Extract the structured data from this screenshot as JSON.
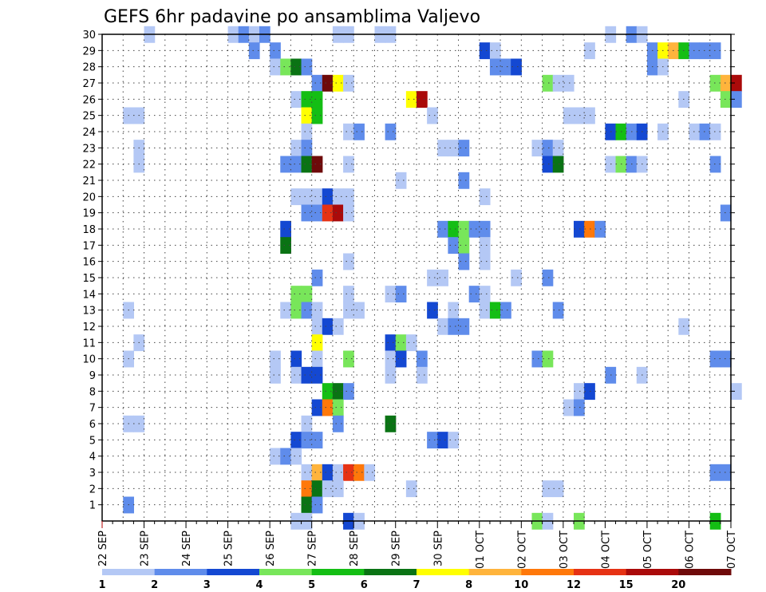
{
  "chart_data": {
    "type": "heatmap",
    "title": "GEFS 6hr padavine po ansamblima Valjevo",
    "xlabel": "",
    "ylabel": "",
    "x_ticks": [
      "22 SEP",
      "23 SEP",
      "24 SEP",
      "25 SEP",
      "26 SEP",
      "27 SEP",
      "28 SEP",
      "29 SEP",
      "30 SEP",
      "01 OCT",
      "02 OCT",
      "03 OCT",
      "04 OCT",
      "05 OCT",
      "06 OCT",
      "07 OCT"
    ],
    "x_range_days": [
      0,
      15
    ],
    "steps_per_day": 4,
    "y_ticks": [
      1,
      2,
      3,
      4,
      5,
      6,
      7,
      8,
      9,
      10,
      11,
      12,
      13,
      14,
      15,
      16,
      17,
      18,
      19,
      20,
      21,
      22,
      23,
      24,
      25,
      26,
      27,
      28,
      29,
      30
    ],
    "y_range": [
      0,
      30
    ],
    "grid": true,
    "colorbar": {
      "labels": [
        "1",
        "2",
        "3",
        "4",
        "5",
        "6",
        "7",
        "8",
        "10",
        "12",
        "15",
        "20"
      ],
      "colors": [
        "#b4c8f5",
        "#5f8ceb",
        "#1448d2",
        "#78e65a",
        "#14be14",
        "#0a7314",
        "#ffff00",
        "#ffb43c",
        "#ff780a",
        "#e63214",
        "#aa0a0a",
        "#6e0a0a"
      ]
    },
    "cells": [
      [
        30,
        4,
        0
      ],
      [
        30,
        12,
        0
      ],
      [
        30,
        13,
        1
      ],
      [
        30,
        14,
        0
      ],
      [
        30,
        15,
        1
      ],
      [
        30,
        22,
        0
      ],
      [
        30,
        23,
        0
      ],
      [
        30,
        26,
        0
      ],
      [
        30,
        27,
        0
      ],
      [
        30,
        48,
        0
      ],
      [
        30,
        50,
        1
      ],
      [
        30,
        51,
        0
      ],
      [
        29,
        14,
        1
      ],
      [
        29,
        16,
        1
      ],
      [
        29,
        36,
        2
      ],
      [
        29,
        37,
        0
      ],
      [
        29,
        46,
        0
      ],
      [
        29,
        52,
        1
      ],
      [
        29,
        53,
        6
      ],
      [
        29,
        54,
        7
      ],
      [
        29,
        55,
        4
      ],
      [
        29,
        56,
        1
      ],
      [
        29,
        57,
        1
      ],
      [
        29,
        58,
        1
      ],
      [
        28,
        16,
        0
      ],
      [
        28,
        17,
        3
      ],
      [
        28,
        18,
        5
      ],
      [
        28,
        19,
        1
      ],
      [
        28,
        37,
        1
      ],
      [
        28,
        38,
        1
      ],
      [
        28,
        39,
        2
      ],
      [
        28,
        52,
        1
      ],
      [
        28,
        53,
        0
      ],
      [
        27,
        20,
        1
      ],
      [
        27,
        21,
        11
      ],
      [
        27,
        22,
        6
      ],
      [
        27,
        23,
        0
      ],
      [
        27,
        42,
        3
      ],
      [
        27,
        43,
        0
      ],
      [
        27,
        44,
        0
      ],
      [
        27,
        58,
        3
      ],
      [
        27,
        59,
        7
      ],
      [
        27,
        60,
        10
      ],
      [
        26,
        18,
        0
      ],
      [
        26,
        19,
        4
      ],
      [
        26,
        20,
        4
      ],
      [
        26,
        29,
        6
      ],
      [
        26,
        30,
        10
      ],
      [
        26,
        55,
        0
      ],
      [
        26,
        59,
        3
      ],
      [
        26,
        60,
        1
      ],
      [
        25,
        2,
        0
      ],
      [
        25,
        3,
        0
      ],
      [
        25,
        19,
        6
      ],
      [
        25,
        20,
        4
      ],
      [
        25,
        31,
        0
      ],
      [
        25,
        44,
        0
      ],
      [
        25,
        45,
        0
      ],
      [
        25,
        46,
        0
      ],
      [
        24,
        19,
        0
      ],
      [
        24,
        23,
        0
      ],
      [
        24,
        24,
        1
      ],
      [
        24,
        27,
        1
      ],
      [
        24,
        48,
        2
      ],
      [
        24,
        49,
        4
      ],
      [
        24,
        50,
        1
      ],
      [
        24,
        51,
        2
      ],
      [
        24,
        53,
        0
      ],
      [
        24,
        56,
        0
      ],
      [
        24,
        57,
        1
      ],
      [
        24,
        58,
        0
      ],
      [
        23,
        3,
        0
      ],
      [
        23,
        18,
        0
      ],
      [
        23,
        19,
        1
      ],
      [
        23,
        32,
        0
      ],
      [
        23,
        33,
        0
      ],
      [
        23,
        34,
        1
      ],
      [
        23,
        41,
        0
      ],
      [
        23,
        42,
        1
      ],
      [
        23,
        43,
        0
      ],
      [
        22,
        3,
        0
      ],
      [
        22,
        17,
        1
      ],
      [
        22,
        18,
        1
      ],
      [
        22,
        19,
        5
      ],
      [
        22,
        20,
        11
      ],
      [
        22,
        23,
        0
      ],
      [
        22,
        42,
        2
      ],
      [
        22,
        43,
        5
      ],
      [
        22,
        48,
        0
      ],
      [
        22,
        49,
        3
      ],
      [
        22,
        50,
        1
      ],
      [
        22,
        51,
        0
      ],
      [
        22,
        58,
        1
      ],
      [
        21,
        28,
        0
      ],
      [
        21,
        34,
        1
      ],
      [
        20,
        18,
        0
      ],
      [
        20,
        19,
        0
      ],
      [
        20,
        20,
        0
      ],
      [
        20,
        21,
        2
      ],
      [
        20,
        22,
        0
      ],
      [
        20,
        23,
        0
      ],
      [
        20,
        36,
        0
      ],
      [
        19,
        19,
        1
      ],
      [
        19,
        20,
        1
      ],
      [
        19,
        21,
        9
      ],
      [
        19,
        22,
        10
      ],
      [
        19,
        23,
        0
      ],
      [
        19,
        59,
        1
      ],
      [
        18,
        17,
        2
      ],
      [
        18,
        32,
        1
      ],
      [
        18,
        33,
        4
      ],
      [
        18,
        34,
        3
      ],
      [
        18,
        35,
        1
      ],
      [
        18,
        36,
        1
      ],
      [
        18,
        45,
        2
      ],
      [
        18,
        46,
        8
      ],
      [
        18,
        47,
        1
      ],
      [
        17,
        17,
        5
      ],
      [
        17,
        33,
        1
      ],
      [
        17,
        34,
        3
      ],
      [
        17,
        36,
        0
      ],
      [
        16,
        23,
        0
      ],
      [
        16,
        34,
        1
      ],
      [
        16,
        36,
        0
      ],
      [
        15,
        20,
        1
      ],
      [
        15,
        31,
        0
      ],
      [
        15,
        32,
        0
      ],
      [
        15,
        39,
        0
      ],
      [
        15,
        42,
        1
      ],
      [
        14,
        18,
        3
      ],
      [
        14,
        19,
        3
      ],
      [
        14,
        23,
        0
      ],
      [
        14,
        27,
        0
      ],
      [
        14,
        28,
        1
      ],
      [
        14,
        35,
        1
      ],
      [
        14,
        36,
        0
      ],
      [
        13,
        2,
        0
      ],
      [
        13,
        17,
        0
      ],
      [
        13,
        18,
        3
      ],
      [
        13,
        19,
        1
      ],
      [
        13,
        20,
        0
      ],
      [
        13,
        23,
        0
      ],
      [
        13,
        24,
        0
      ],
      [
        13,
        31,
        2
      ],
      [
        13,
        33,
        0
      ],
      [
        13,
        36,
        0
      ],
      [
        13,
        37,
        4
      ],
      [
        13,
        38,
        1
      ],
      [
        13,
        43,
        1
      ],
      [
        12,
        20,
        0
      ],
      [
        12,
        21,
        2
      ],
      [
        12,
        22,
        0
      ],
      [
        12,
        32,
        0
      ],
      [
        12,
        33,
        1
      ],
      [
        12,
        34,
        1
      ],
      [
        12,
        55,
        0
      ],
      [
        11,
        3,
        0
      ],
      [
        11,
        20,
        6
      ],
      [
        11,
        27,
        2
      ],
      [
        11,
        28,
        3
      ],
      [
        11,
        29,
        0
      ],
      [
        10,
        2,
        0
      ],
      [
        10,
        16,
        0
      ],
      [
        10,
        18,
        2
      ],
      [
        10,
        20,
        0
      ],
      [
        10,
        23,
        3
      ],
      [
        10,
        27,
        0
      ],
      [
        10,
        28,
        2
      ],
      [
        10,
        30,
        1
      ],
      [
        10,
        41,
        1
      ],
      [
        10,
        42,
        3
      ],
      [
        10,
        58,
        1
      ],
      [
        10,
        59,
        1
      ],
      [
        9,
        16,
        0
      ],
      [
        9,
        18,
        0
      ],
      [
        9,
        19,
        2
      ],
      [
        9,
        20,
        2
      ],
      [
        9,
        27,
        0
      ],
      [
        9,
        30,
        0
      ],
      [
        9,
        48,
        1
      ],
      [
        9,
        51,
        0
      ],
      [
        8,
        21,
        4
      ],
      [
        8,
        22,
        5
      ],
      [
        8,
        23,
        1
      ],
      [
        8,
        45,
        0
      ],
      [
        8,
        46,
        2
      ],
      [
        8,
        60,
        0
      ],
      [
        7,
        20,
        2
      ],
      [
        7,
        21,
        8
      ],
      [
        7,
        22,
        3
      ],
      [
        7,
        44,
        0
      ],
      [
        7,
        45,
        1
      ],
      [
        6,
        2,
        0
      ],
      [
        6,
        3,
        0
      ],
      [
        6,
        19,
        0
      ],
      [
        6,
        22,
        1
      ],
      [
        6,
        27,
        5
      ],
      [
        5,
        18,
        2
      ],
      [
        5,
        19,
        1
      ],
      [
        5,
        20,
        1
      ],
      [
        5,
        31,
        1
      ],
      [
        5,
        32,
        2
      ],
      [
        5,
        33,
        0
      ],
      [
        4,
        16,
        0
      ],
      [
        4,
        17,
        1
      ],
      [
        4,
        18,
        0
      ],
      [
        3,
        19,
        0
      ],
      [
        3,
        20,
        7
      ],
      [
        3,
        21,
        2
      ],
      [
        3,
        22,
        0
      ],
      [
        3,
        23,
        9
      ],
      [
        3,
        24,
        8
      ],
      [
        3,
        25,
        0
      ],
      [
        3,
        58,
        1
      ],
      [
        3,
        59,
        1
      ],
      [
        2,
        19,
        8
      ],
      [
        2,
        20,
        5
      ],
      [
        2,
        21,
        0
      ],
      [
        2,
        22,
        0
      ],
      [
        2,
        29,
        0
      ],
      [
        2,
        42,
        0
      ],
      [
        2,
        43,
        0
      ],
      [
        1,
        2,
        1
      ],
      [
        1,
        19,
        5
      ],
      [
        1,
        20,
        1
      ],
      [
        0,
        18,
        0
      ],
      [
        0,
        19,
        0
      ],
      [
        0,
        23,
        2
      ],
      [
        0,
        24,
        0
      ],
      [
        0,
        41,
        3
      ],
      [
        0,
        42,
        0
      ],
      [
        0,
        45,
        3
      ],
      [
        0,
        58,
        4
      ]
    ]
  }
}
